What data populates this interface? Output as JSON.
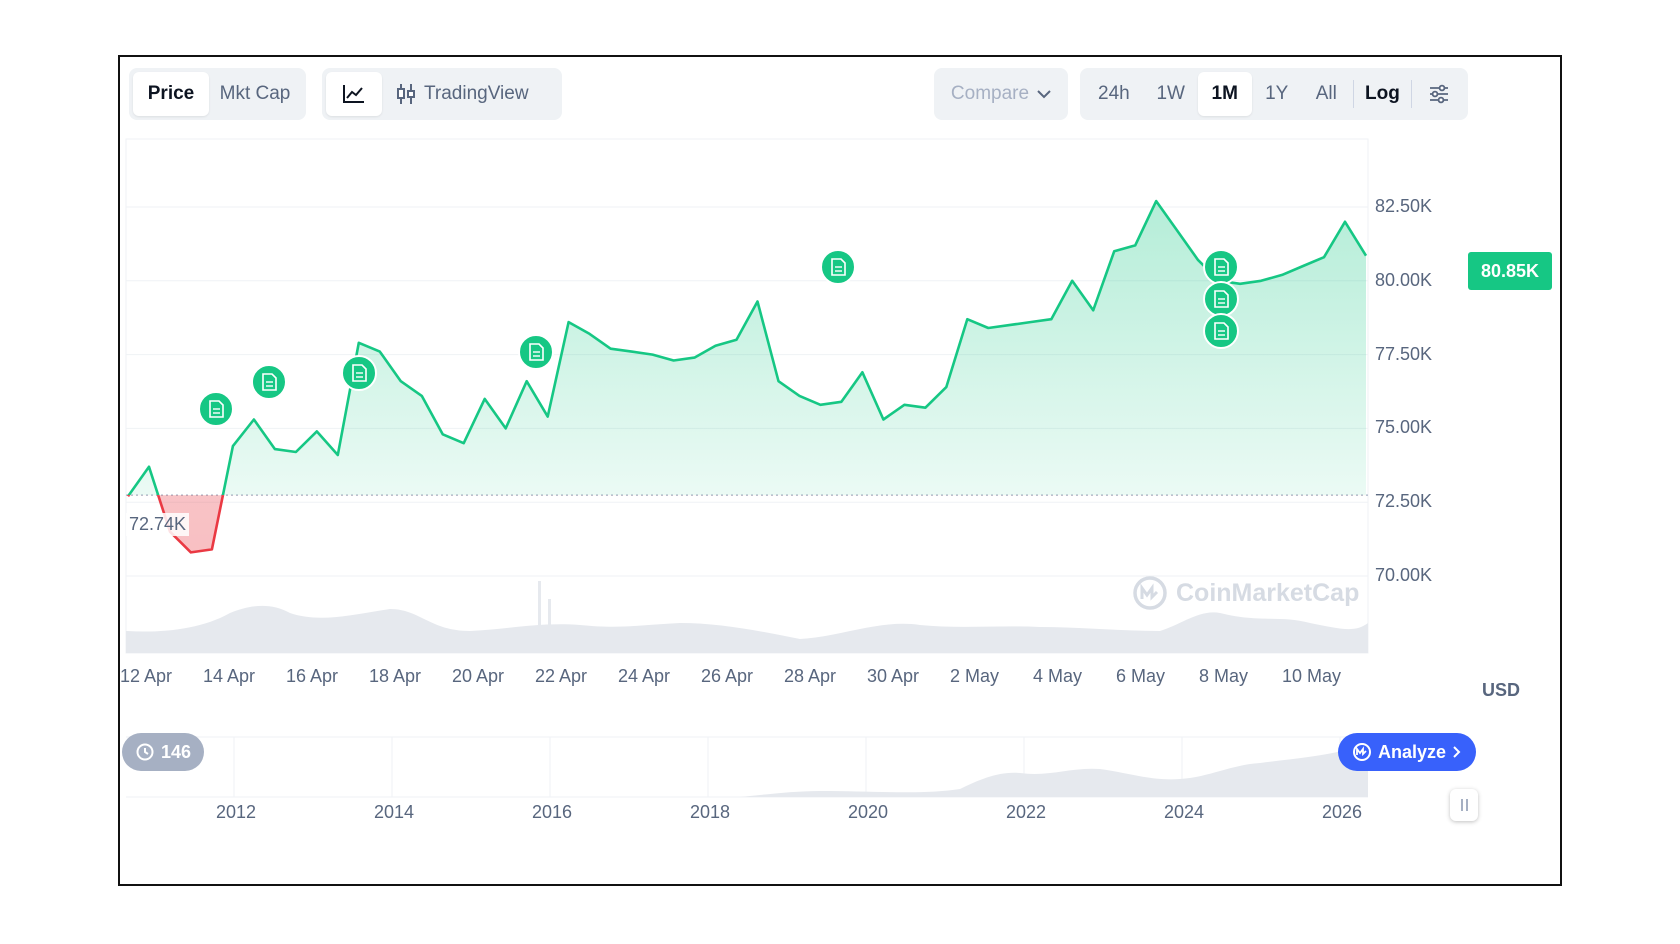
{
  "toolbar": {
    "data_type_tabs": [
      {
        "label": "Price",
        "active": true
      },
      {
        "label": "Mkt Cap",
        "active": false
      }
    ],
    "chart_style": {
      "line_icon": "line-chart-icon",
      "tradingview_icon": "candlestick-icon",
      "tradingview_label": "TradingView"
    },
    "compare": {
      "label": "Compare",
      "icon": "chevron-down-icon"
    },
    "time_ranges": [
      {
        "label": "24h",
        "active": false
      },
      {
        "label": "1W",
        "active": false
      },
      {
        "label": "1M",
        "active": true
      },
      {
        "label": "1Y",
        "active": false
      },
      {
        "label": "All",
        "active": false
      }
    ],
    "log_label": "Log",
    "settings_icon": "sliders-icon"
  },
  "chart": {
    "current_price": "80.85K",
    "open_price": "72.74K",
    "currency": "USD",
    "watermark": "CoinMarketCap",
    "history_count": "146",
    "analyze_label": "Analyze",
    "colors": {
      "up": "#16c784",
      "down": "#ea3943",
      "accent": "#3861fb"
    }
  },
  "chart_data": {
    "type": "line",
    "y_ticks": [
      "82.50K",
      "80.00K",
      "77.50K",
      "75.00K",
      "72.50K",
      "70.00K"
    ],
    "x_ticks": [
      "12 Apr",
      "14 Apr",
      "16 Apr",
      "18 Apr",
      "20 Apr",
      "22 Apr",
      "24 Apr",
      "26 Apr",
      "28 Apr",
      "30 Apr",
      "2 May",
      "4 May",
      "6 May",
      "8 May",
      "10 May"
    ],
    "range_years": [
      "2012",
      "2014",
      "2016",
      "2018",
      "2020",
      "2022",
      "2024",
      "2026"
    ],
    "ylim": [
      69500,
      84500
    ],
    "baseline": 72740,
    "series": [
      {
        "x": [
          "12 Apr",
          "12 Apr",
          "13 Apr",
          "13 Apr",
          "14 Apr",
          "14 Apr",
          "15 Apr",
          "15 Apr",
          "16 Apr",
          "16 Apr",
          "17 Apr",
          "17 Apr",
          "18 Apr",
          "18 Apr",
          "19 Apr",
          "19 Apr",
          "20 Apr",
          "20 Apr",
          "21 Apr",
          "21 Apr",
          "22 Apr",
          "22 Apr",
          "23 Apr",
          "23 Apr",
          "24 Apr",
          "24 Apr",
          "25 Apr",
          "25 Apr",
          "26 Apr",
          "26 Apr",
          "27 Apr",
          "27 Apr",
          "28 Apr",
          "28 Apr",
          "29 Apr",
          "29 Apr",
          "30 Apr",
          "30 Apr",
          "1 May",
          "1 May",
          "2 May",
          "2 May",
          "3 May",
          "3 May",
          "4 May",
          "4 May",
          "5 May",
          "5 May",
          "6 May",
          "6 May",
          "7 May",
          "7 May",
          "8 May",
          "8 May",
          "9 May",
          "9 May",
          "10 May",
          "10 May",
          "11 May",
          "11 May"
        ],
        "values": [
          72700,
          73700,
          71500,
          70800,
          70900,
          74400,
          75300,
          74300,
          74200,
          74900,
          74100,
          77900,
          77600,
          76600,
          76100,
          74800,
          74500,
          76000,
          75000,
          76600,
          75400,
          78600,
          78200,
          77700,
          77600,
          77500,
          77300,
          77400,
          77800,
          78000,
          79300,
          76600,
          76100,
          75800,
          75900,
          76900,
          75300,
          75800,
          75700,
          76400,
          78700,
          78400,
          78500,
          78600,
          78700,
          80000,
          79000,
          81000,
          81200,
          82700,
          81700,
          80700,
          80000,
          79900,
          80000,
          80200,
          80500,
          80800,
          82000,
          80850
        ]
      }
    ]
  }
}
